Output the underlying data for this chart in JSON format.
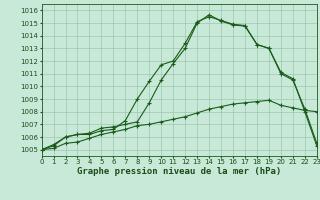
{
  "title": "Graphe pression niveau de la mer (hPa)",
  "bg_color": "#c8e8d8",
  "grid_color": "#9dc8b0",
  "line_color": "#1a5c1a",
  "xlim": [
    0,
    23
  ],
  "ylim": [
    1004.5,
    1016.5
  ],
  "xticks": [
    0,
    1,
    2,
    3,
    4,
    5,
    6,
    7,
    8,
    9,
    10,
    11,
    12,
    13,
    14,
    15,
    16,
    17,
    18,
    19,
    20,
    21,
    22,
    23
  ],
  "yticks": [
    1005,
    1006,
    1007,
    1008,
    1009,
    1010,
    1011,
    1012,
    1013,
    1014,
    1015,
    1016
  ],
  "line1_x": [
    0,
    1,
    2,
    3,
    4,
    5,
    6,
    7,
    8,
    9,
    10,
    11,
    12,
    13,
    14,
    15,
    16,
    17,
    18,
    19,
    20,
    21,
    22,
    23
  ],
  "line1_y": [
    1005.0,
    1005.4,
    1006.0,
    1006.2,
    1006.3,
    1006.7,
    1006.8,
    1007.0,
    1007.2,
    1008.7,
    1010.5,
    1011.8,
    1013.0,
    1015.0,
    1015.65,
    1015.15,
    1014.85,
    1014.75,
    1013.3,
    1013.0,
    1011.0,
    1010.5,
    1008.2,
    1005.5
  ],
  "line2_x": [
    0,
    1,
    2,
    3,
    4,
    5,
    6,
    7,
    8,
    9,
    10,
    11,
    12,
    13,
    14,
    15,
    16,
    17,
    18,
    19,
    20,
    21,
    22,
    23
  ],
  "line2_y": [
    1005.0,
    1005.3,
    1006.0,
    1006.2,
    1006.2,
    1006.5,
    1006.6,
    1007.3,
    1009.0,
    1010.4,
    1011.7,
    1012.0,
    1013.4,
    1015.1,
    1015.5,
    1015.2,
    1014.9,
    1014.8,
    1013.3,
    1013.0,
    1011.1,
    1010.6,
    1008.0,
    1005.3
  ],
  "line3_x": [
    0,
    1,
    2,
    3,
    4,
    5,
    6,
    7,
    8,
    9,
    10,
    11,
    12,
    13,
    14,
    15,
    16,
    17,
    18,
    19,
    20,
    21,
    22,
    23
  ],
  "line3_y": [
    1005.0,
    1005.1,
    1005.5,
    1005.6,
    1005.9,
    1006.2,
    1006.4,
    1006.6,
    1006.9,
    1007.0,
    1007.2,
    1007.4,
    1007.6,
    1007.9,
    1008.2,
    1008.4,
    1008.6,
    1008.7,
    1008.8,
    1008.9,
    1008.5,
    1008.3,
    1008.1,
    1008.0
  ],
  "title_fontsize": 6.5,
  "tick_fontsize": 5.0,
  "figwidth": 3.2,
  "figheight": 2.0,
  "dpi": 100
}
